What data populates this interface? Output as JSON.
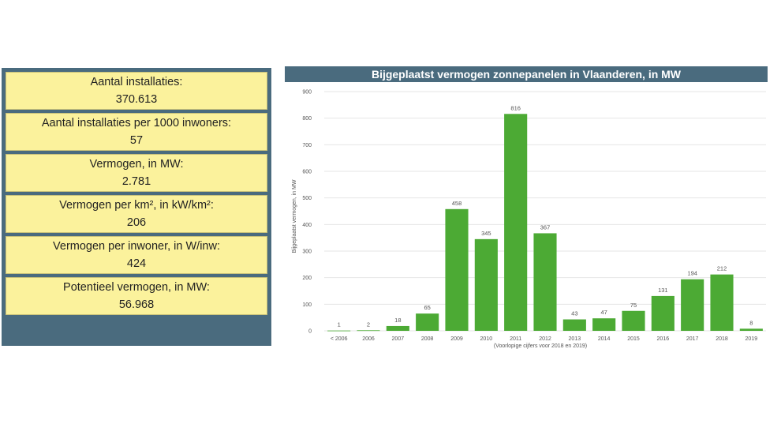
{
  "stats": [
    {
      "label": "Aantal installaties:",
      "value": "370.613"
    },
    {
      "label": "Aantal installaties per 1000 inwoners:",
      "value": "57"
    },
    {
      "label": "Vermogen, in MW:",
      "value": "2.781"
    },
    {
      "label": "Vermogen per km², in kW/km²:",
      "value": "206"
    },
    {
      "label": "Vermogen per inwoner, in W/inw:",
      "value": "424"
    },
    {
      "label": "Potentieel vermogen, in MW:",
      "value": "56.968"
    }
  ],
  "colors": {
    "panel": "#4a6b7e",
    "card": "#fbf29c",
    "bar": "#4caa34",
    "grid": "#e6e6e6"
  },
  "chart_data": {
    "type": "bar",
    "title": "Bijgeplaatst vermogen zonnepanelen in Vlaanderen, in MW",
    "xlabel": "(Voorlopige cijfers voor 2018 en 2019)",
    "ylabel": "Bijgeplaatst vermogen, in MW",
    "ylim": [
      0,
      900
    ],
    "yticks": [
      0,
      100,
      200,
      300,
      400,
      500,
      600,
      700,
      800,
      900
    ],
    "grid": true,
    "categories": [
      "< 2006",
      "2006",
      "2007",
      "2008",
      "2009",
      "2010",
      "2011",
      "2012",
      "2013",
      "2014",
      "2015",
      "2016",
      "2017",
      "2018",
      "2019"
    ],
    "values": [
      1,
      2,
      18,
      65,
      458,
      345,
      816,
      367,
      43,
      47,
      75,
      131,
      194,
      212,
      8
    ]
  }
}
